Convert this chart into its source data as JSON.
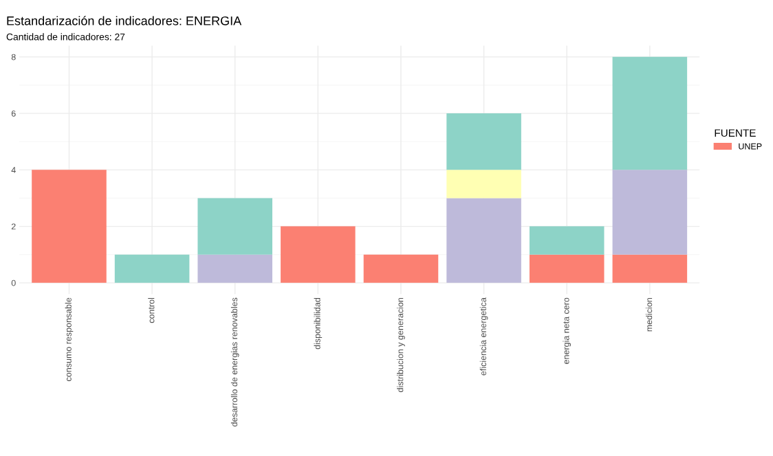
{
  "chart_data": {
    "type": "bar",
    "title": "Estandarización de indicadores: ENERGIA",
    "subtitle": "Cantidad de indicadores: 27",
    "categories": [
      "consumo responsable",
      "control",
      "desarrollo de energias renovables",
      "disponibilidad",
      "distribucion y generacion",
      "eficiencia energetica",
      "energia neta cero",
      "medicion"
    ],
    "stacked": true,
    "series": [
      {
        "name": "UNEP",
        "color": "#fb8072",
        "values": [
          4,
          null,
          null,
          2,
          1,
          null,
          1,
          1
        ]
      },
      {
        "color": "#bebada",
        "values": [
          null,
          null,
          1,
          null,
          null,
          3,
          null,
          3
        ]
      },
      {
        "color": "#ffffb3",
        "values": [
          null,
          null,
          null,
          null,
          null,
          1,
          null,
          null
        ]
      },
      {
        "color": "#8dd3c7",
        "values": [
          null,
          1,
          2,
          null,
          null,
          2,
          1,
          4
        ]
      }
    ],
    "legend_title": "FUENTE",
    "legend": "right",
    "ylim": [
      -0.4,
      8.4
    ],
    "yticks": [
      0,
      2,
      4,
      6,
      8
    ],
    "grid": true
  }
}
